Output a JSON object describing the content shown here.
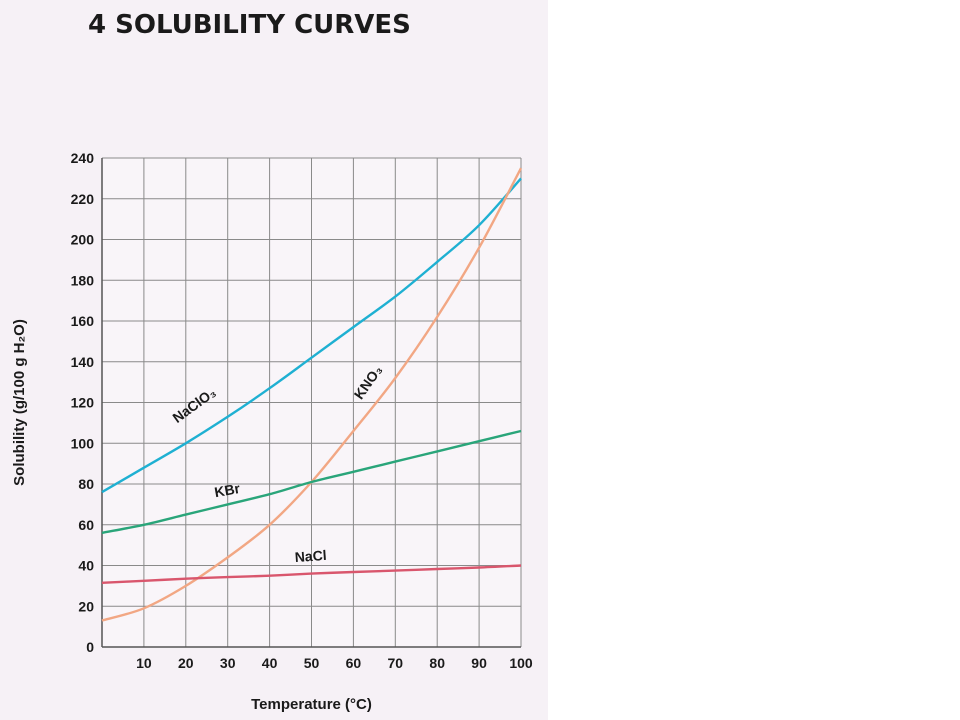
{
  "title": "4  SOLUBILITY CURVES",
  "chart_data": {
    "type": "line",
    "title": "4  SOLUBILITY CURVES",
    "xlabel": "Temperature (°C)",
    "ylabel": "Solubility (g/100 g H₂O)",
    "xlim": [
      0,
      100
    ],
    "ylim": [
      0,
      240
    ],
    "x_ticks": [
      10,
      20,
      30,
      40,
      50,
      60,
      70,
      80,
      90,
      100
    ],
    "y_ticks": [
      0,
      20,
      40,
      60,
      80,
      100,
      120,
      140,
      160,
      180,
      200,
      220,
      240
    ],
    "grid": true,
    "series": [
      {
        "name": "NaClO₃",
        "color": "#1fb0d2",
        "x": [
          0,
          10,
          20,
          30,
          40,
          50,
          60,
          70,
          80,
          90,
          100
        ],
        "y": [
          76,
          88,
          100,
          113,
          127,
          142,
          157,
          172,
          189,
          207,
          230
        ]
      },
      {
        "name": "KNO₃",
        "color": "#f2a784",
        "x": [
          0,
          10,
          20,
          30,
          40,
          50,
          60,
          70,
          80,
          90,
          100
        ],
        "y": [
          13,
          19,
          30,
          44,
          60,
          81,
          106,
          132,
          162,
          196,
          235
        ]
      },
      {
        "name": "KBr",
        "color": "#2aa57a",
        "x": [
          0,
          10,
          20,
          30,
          40,
          50,
          60,
          70,
          80,
          90,
          100
        ],
        "y": [
          56,
          60,
          65,
          70,
          75,
          81,
          86,
          91,
          96,
          101,
          106
        ]
      },
      {
        "name": "NaCl",
        "color": "#d9566d",
        "x": [
          0,
          10,
          20,
          30,
          40,
          50,
          60,
          70,
          80,
          90,
          100
        ],
        "y": [
          31.5,
          32.5,
          33.5,
          34.3,
          35,
          36,
          36.8,
          37.5,
          38.3,
          39,
          40
        ]
      }
    ]
  }
}
